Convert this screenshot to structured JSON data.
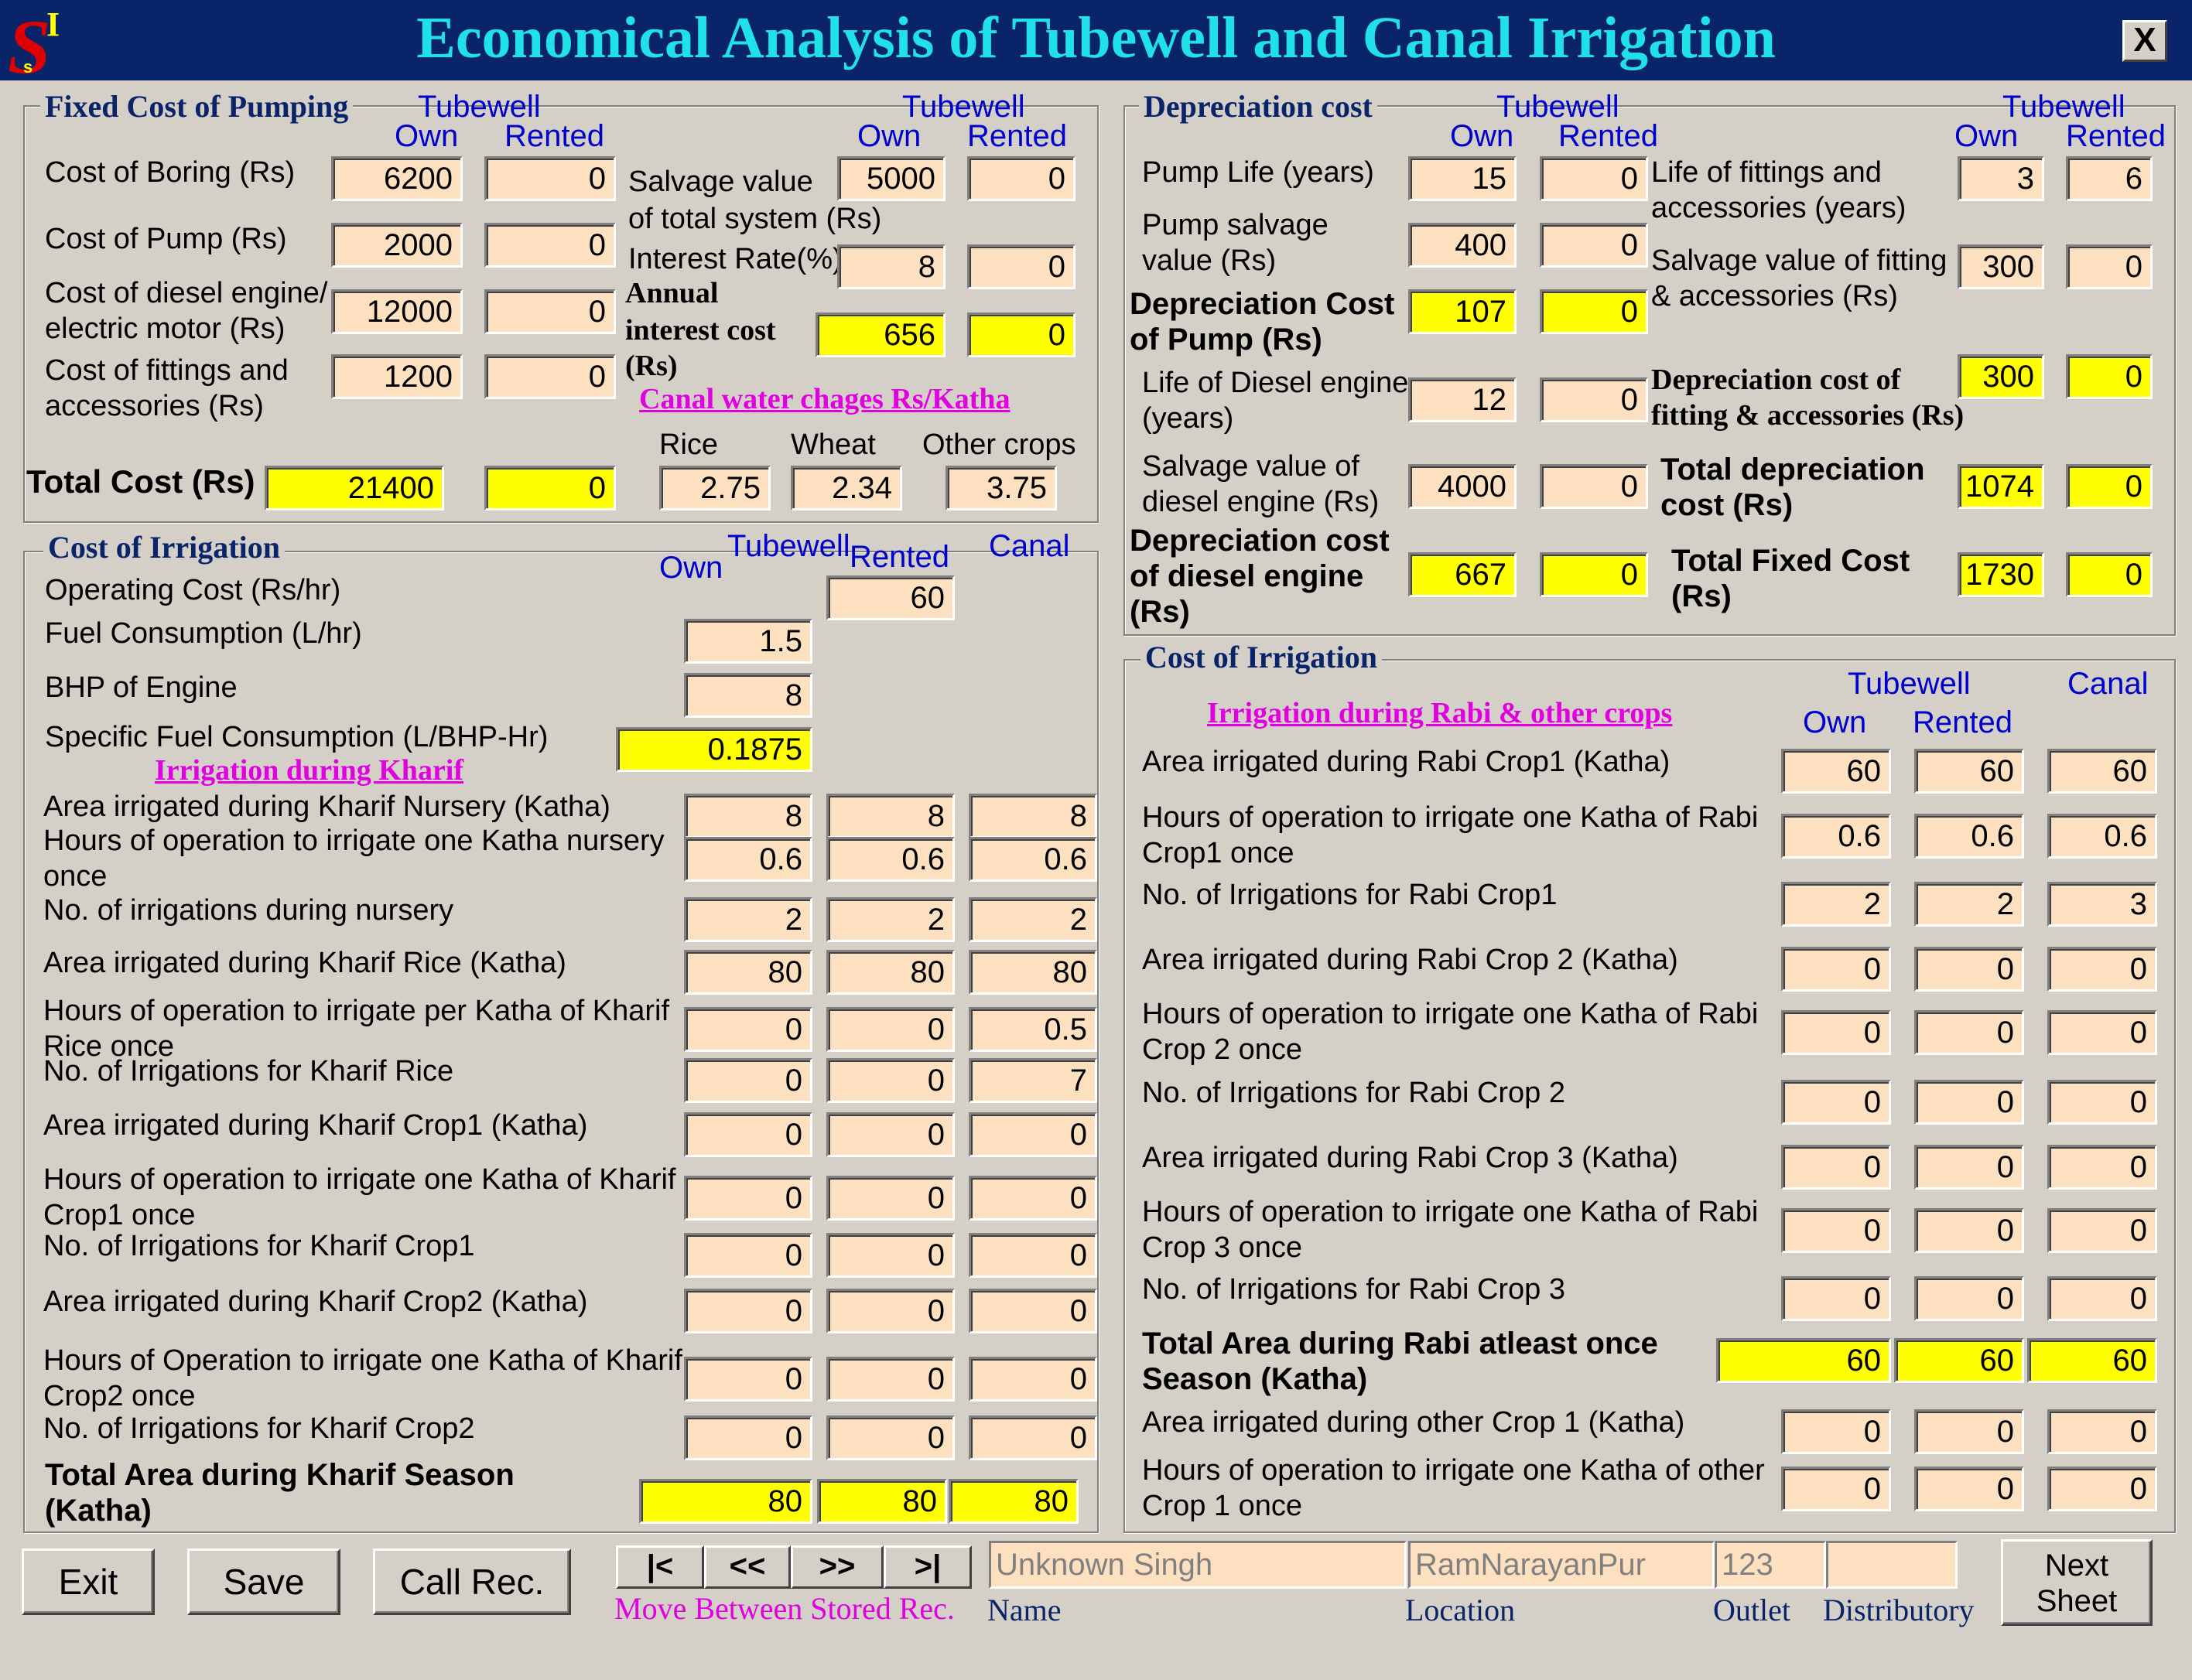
{
  "window": {
    "title": "Economical Analysis of Tubewell and Canal Irrigation",
    "close": "X",
    "logo_text": "SI"
  },
  "colors": {
    "titlebar": "#0a246a",
    "title_text": "#20e0e8",
    "field": "#fde0c0",
    "computed": "#ffff00",
    "accent": "#e000e0"
  },
  "hdr": {
    "tubewell": "Tubewell",
    "own": "Own",
    "rented": "Rented",
    "canal": "Canal"
  },
  "fixed": {
    "title": "Fixed Cost of Pumping",
    "boring": {
      "label": "Cost of Boring (Rs)",
      "own": "6200",
      "rented": "0"
    },
    "pump": {
      "label": "Cost of Pump (Rs)",
      "own": "2000",
      "rented": "0"
    },
    "engine": {
      "label1": "Cost of diesel engine/",
      "label2": "electric motor (Rs)",
      "own": "12000",
      "rented": "0"
    },
    "fittings": {
      "label1": "Cost of fittings and",
      "label2": "accessories (Rs)",
      "own": "1200",
      "rented": "0"
    },
    "salvage": {
      "label1": "Salvage value",
      "label2": "of total system (Rs)",
      "own": "5000",
      "rented": "0"
    },
    "interest_rate": {
      "label": "Interest Rate(%)",
      "own": "8",
      "rented": "0"
    },
    "annual_interest": {
      "label1": "Annual",
      "label2": "interest cost",
      "label3": "(Rs)",
      "own": "656",
      "rented": "0"
    },
    "canal_charges": {
      "label": "Canal water chages Rs/Katha",
      "rice_label": "Rice",
      "wheat_label": "Wheat",
      "other_label": "Other crops",
      "rice": "2.75",
      "wheat": "2.34",
      "other": "3.75"
    },
    "total": {
      "label": "Total Cost (Rs)",
      "own": "21400",
      "rented": "0"
    }
  },
  "dep": {
    "title": "Depreciation cost",
    "pump_life": {
      "label": "Pump Life (years)",
      "own": "15",
      "rented": "0"
    },
    "pump_salvage": {
      "label1": "Pump salvage",
      "label2": "value (Rs)",
      "own": "400",
      "rented": "0"
    },
    "dep_pump": {
      "label1": "Depreciation Cost",
      "label2": "of Pump (Rs)",
      "own": "107",
      "rented": "0"
    },
    "engine_life": {
      "label1": "Life of Diesel engine",
      "label2": "(years)",
      "own": "12",
      "rented": "0"
    },
    "engine_salvage": {
      "label1": "Salvage value of",
      "label2": "diesel engine (Rs)",
      "own": "4000",
      "rented": "0"
    },
    "dep_engine": {
      "label1": "Depreciation cost",
      "label2": "of diesel engine",
      "label3": "(Rs)",
      "own": "667",
      "rented": "0"
    },
    "fit_life": {
      "label1": "Life of fittings and",
      "label2": "accessories (years)",
      "own": "3",
      "rented": "6"
    },
    "fit_salvage": {
      "label1": "Salvage value of fitting",
      "label2": "& accessories (Rs)",
      "own": "300",
      "rented": "0"
    },
    "dep_fit": {
      "label1": "Depreciation cost of",
      "label2": "fitting & accessories (Rs)",
      "own": "300",
      "rented": "0"
    },
    "total_dep": {
      "label1": "Total depreciation",
      "label2": "cost (Rs)",
      "own": "1074",
      "rented": "0"
    },
    "total_fixed": {
      "label1": "Total Fixed Cost",
      "label2": "(Rs)",
      "own": "1730",
      "rented": "0"
    }
  },
  "kharif": {
    "title": "Cost of Irrigation",
    "operating": {
      "label": "Operating Cost (Rs/hr)",
      "rented": "60"
    },
    "fuel": {
      "label": "Fuel Consumption (L/hr)",
      "own": "1.5"
    },
    "bhp": {
      "label": "BHP of Engine",
      "own": "8"
    },
    "sfc": {
      "label": "Specific Fuel Consumption (L/BHP-Hr)",
      "own": "0.1875"
    },
    "section": "Irrigation during Kharif",
    "rows": [
      {
        "l1": "Area irrigated during Kharif Nursery (Katha)",
        "l2": "",
        "v": [
          "8",
          "8",
          "8"
        ]
      },
      {
        "l1": "Hours of operation to irrigate one Katha nursery",
        "l2": "once",
        "v": [
          "0.6",
          "0.6",
          "0.6"
        ]
      },
      {
        "l1": "No. of irrigations during nursery",
        "l2": "",
        "v": [
          "2",
          "2",
          "2"
        ]
      },
      {
        "l1": "Area irrigated during Kharif Rice (Katha)",
        "l2": "",
        "v": [
          "80",
          "80",
          "80"
        ]
      },
      {
        "l1": "Hours of operation to irrigate per Katha of Kharif",
        "l2": "Rice once",
        "v": [
          "0",
          "0",
          "0.5"
        ]
      },
      {
        "l1": "No. of Irrigations for Kharif Rice",
        "l2": "",
        "v": [
          "0",
          "0",
          "7"
        ]
      },
      {
        "l1": "Area irrigated during Kharif Crop1 (Katha)",
        "l2": "",
        "v": [
          "0",
          "0",
          "0"
        ]
      },
      {
        "l1": "Hours of operation to irrigate one Katha of Kharif",
        "l2": "Crop1 once",
        "v": [
          "0",
          "0",
          "0"
        ]
      },
      {
        "l1": "No. of Irrigations for Kharif Crop1",
        "l2": "",
        "v": [
          "0",
          "0",
          "0"
        ]
      },
      {
        "l1": "Area irrigated during Kharif Crop2 (Katha)",
        "l2": "",
        "v": [
          "0",
          "0",
          "0"
        ]
      },
      {
        "l1": "Hours of Operation to irrigate one Katha of Kharif",
        "l2": "Crop2 once",
        "v": [
          "0",
          "0",
          "0"
        ]
      },
      {
        "l1": "No. of Irrigations for Kharif Crop2",
        "l2": "",
        "v": [
          "0",
          "0",
          "0"
        ]
      }
    ],
    "total": {
      "label1": "Total Area during Kharif Season",
      "label2": "(Katha)",
      "v": [
        "80",
        "80",
        "80"
      ]
    }
  },
  "rabi": {
    "title": "Cost of Irrigation",
    "section": "Irrigation during Rabi & other crops",
    "rows": [
      {
        "l1": "Area irrigated during Rabi Crop1 (Katha)",
        "l2": "",
        "v": [
          "60",
          "60",
          "60"
        ]
      },
      {
        "l1": "Hours of operation to irrigate one Katha of Rabi",
        "l2": "Crop1 once",
        "v": [
          "0.6",
          "0.6",
          "0.6"
        ]
      },
      {
        "l1": "No. of Irrigations for Rabi Crop1",
        "l2": "",
        "v": [
          "2",
          "2",
          "3"
        ]
      },
      {
        "l1": "Area irrigated during Rabi Crop 2 (Katha)",
        "l2": "",
        "v": [
          "0",
          "0",
          "0"
        ]
      },
      {
        "l1": "Hours of operation to irrigate one Katha of Rabi",
        "l2": "Crop 2 once",
        "v": [
          "0",
          "0",
          "0"
        ]
      },
      {
        "l1": "No. of Irrigations for Rabi Crop 2",
        "l2": "",
        "v": [
          "0",
          "0",
          "0"
        ]
      },
      {
        "l1": "Area irrigated during Rabi Crop 3 (Katha)",
        "l2": "",
        "v": [
          "0",
          "0",
          "0"
        ]
      },
      {
        "l1": "Hours of operation to irrigate one Katha of Rabi",
        "l2": "Crop 3 once",
        "v": [
          "0",
          "0",
          "0"
        ]
      },
      {
        "l1": "No. of Irrigations for Rabi Crop 3",
        "l2": "",
        "v": [
          "0",
          "0",
          "0"
        ]
      }
    ],
    "total": {
      "label1": "Total Area during Rabi atleast once",
      "label2": "Season (Katha)",
      "v": [
        "60",
        "60",
        "60"
      ]
    },
    "rows2": [
      {
        "l1": "Area irrigated during other Crop 1 (Katha)",
        "l2": "",
        "v": [
          "0",
          "0",
          "0"
        ]
      },
      {
        "l1": "Hours of operation to irrigate one Katha of other",
        "l2": "Crop 1 once",
        "v": [
          "0",
          "0",
          "0"
        ]
      }
    ]
  },
  "footer": {
    "exit": "Exit",
    "save": "Save",
    "call": "Call Rec.",
    "first": "|<",
    "prev": "<<",
    "next": ">>",
    "last": ">|",
    "move_label": "Move Between Stored Rec.",
    "name_value": "Unknown Singh",
    "location_value": "RamNarayanPur",
    "outlet_value": "123",
    "distributory_value": "",
    "name_label": "Name",
    "location_label": "Location",
    "outlet_label": "Outlet",
    "distributory_label": "Distributory",
    "next_sheet1": "Next",
    "next_sheet2": "Sheet"
  }
}
